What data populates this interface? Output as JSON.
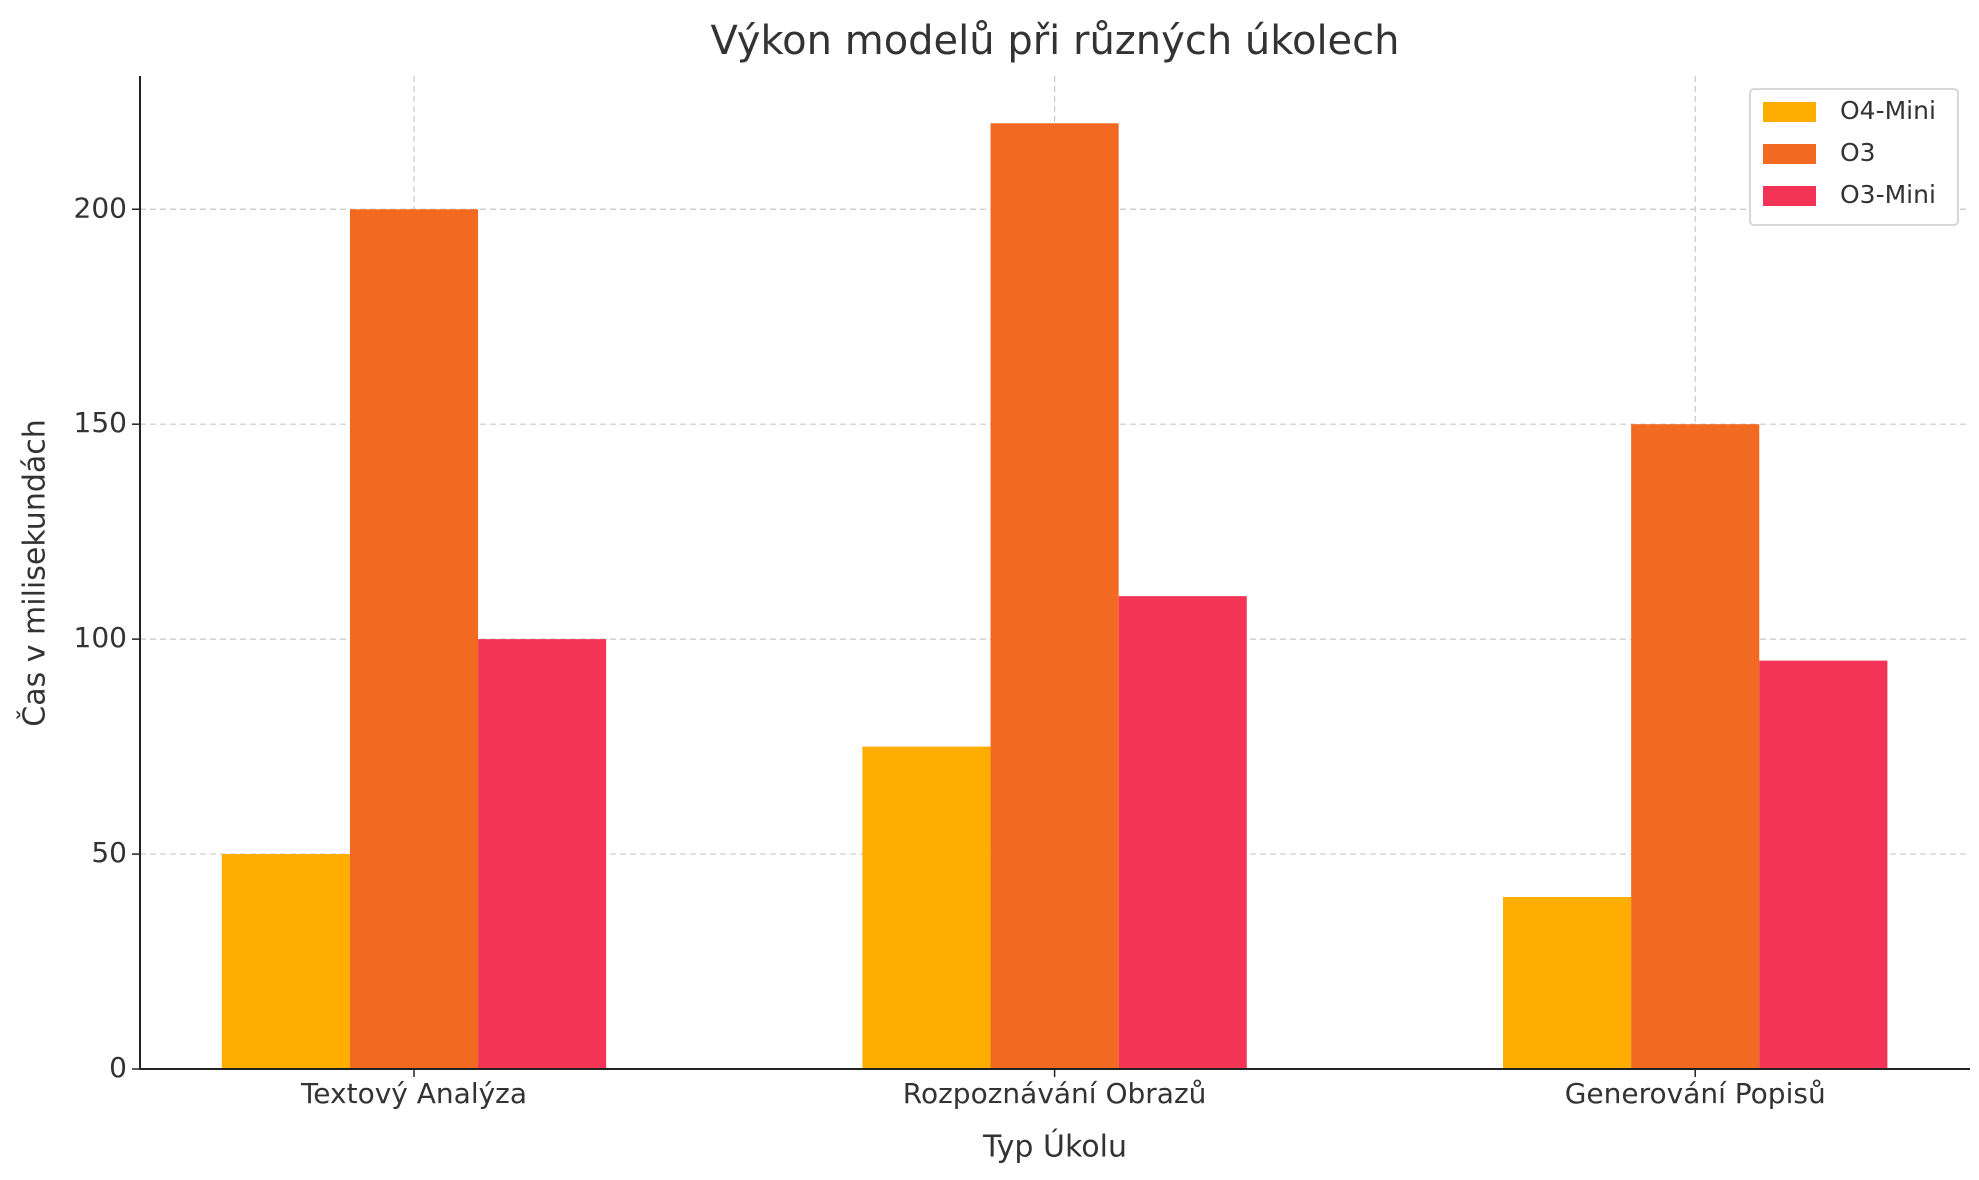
{
  "chart_data": {
    "type": "bar",
    "title": "Výkon modelů při různých úkolech",
    "x_label": "Typ Úkolu",
    "y_label": "Čas v milisekundách",
    "categories": [
      "Textový Analýza",
      "Rozpoznávání Obrazů",
      "Generování Popisů"
    ],
    "series": [
      {
        "name": "O4-Mini",
        "color": "#ffae00",
        "values": [
          50,
          75,
          40
        ]
      },
      {
        "name": "O3",
        "color": "#f26a21",
        "values": [
          200,
          220,
          150
        ]
      },
      {
        "name": "O3-Mini",
        "color": "#f43457",
        "values": [
          100,
          110,
          95
        ]
      }
    ],
    "ylim": [
      0,
      231
    ],
    "yticks": [
      0,
      50,
      100,
      150,
      200
    ],
    "grid": true,
    "legend": "upper right"
  }
}
